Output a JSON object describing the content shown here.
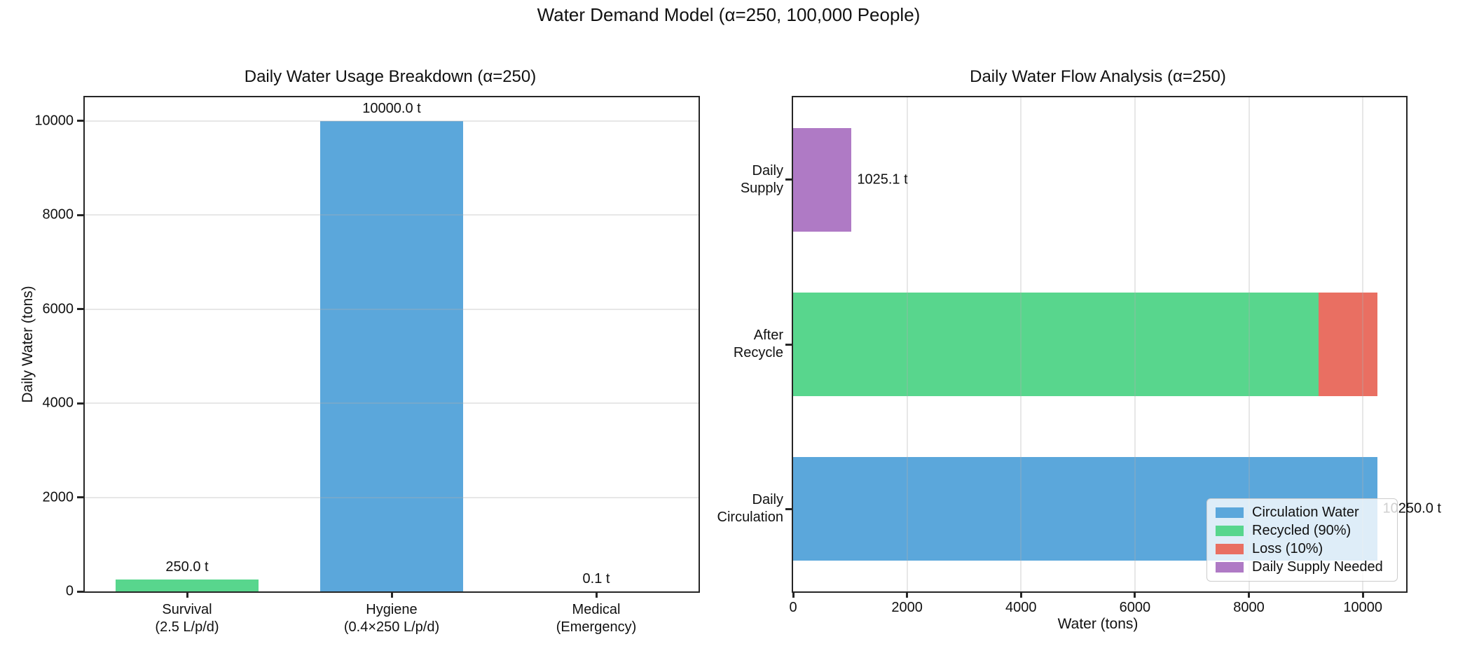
{
  "figure": {
    "title": "Water Demand Model (α=250, 100,000 People)"
  },
  "colors": {
    "blue": "#5BA7DB",
    "green": "#58D68D",
    "red": "#E96F62",
    "purple": "#AF7AC5",
    "spine": "#262626",
    "grid_rgba": "rgba(176,176,176,0.3)",
    "legend_border": "#cccccc",
    "legend_bg": "rgba(255,255,255,0.8)",
    "text": "#111111"
  },
  "chart_data": [
    {
      "type": "bar",
      "title": "Daily Water Usage Breakdown (α=250)",
      "ylabel": "Daily Water (tons)",
      "categories": [
        "Survival\n(2.5 L/p/d)",
        "Hygiene\n(0.4×250 L/p/d)",
        "Medical\n(Emergency)"
      ],
      "values": [
        250.0,
        10000.0,
        0.1
      ],
      "bar_colors": [
        "green",
        "blue",
        "red"
      ],
      "value_labels": [
        "250.0 t",
        "10000.0 t",
        "0.1 t"
      ],
      "yticks": [
        0,
        2000,
        4000,
        6000,
        8000,
        10000
      ],
      "ylim": [
        0,
        10500
      ],
      "grid": "horizontal",
      "legend": null
    },
    {
      "type": "barh",
      "title": "Daily Water Flow Analysis (α=250)",
      "xlabel": "Water (tons)",
      "xticks": [
        0,
        2000,
        4000,
        6000,
        8000,
        10000
      ],
      "xlim": [
        0,
        10760
      ],
      "grid": "vertical",
      "rows": [
        {
          "category": "Daily\nSupply",
          "segments": [
            {
              "name": "Daily Supply Needed",
              "value": 1025.1,
              "color": "purple"
            }
          ],
          "value_label": "1025.1 t"
        },
        {
          "category": "After\nRecycle",
          "segments": [
            {
              "name": "Recycled (90%)",
              "value": 9225.0,
              "color": "green"
            },
            {
              "name": "Loss (10%)",
              "value": 1025.0,
              "color": "red"
            }
          ],
          "value_label": ""
        },
        {
          "category": "Daily\nCirculation",
          "segments": [
            {
              "name": "Circulation Water",
              "value": 10250.0,
              "color": "blue"
            }
          ],
          "value_label": "10250.0 t"
        }
      ],
      "legend": {
        "position": "lower right",
        "items": [
          {
            "label": "Circulation Water",
            "color": "blue"
          },
          {
            "label": "Recycled (90%)",
            "color": "green"
          },
          {
            "label": "Loss (10%)",
            "color": "red"
          },
          {
            "label": "Daily Supply Needed",
            "color": "purple"
          }
        ]
      }
    }
  ]
}
